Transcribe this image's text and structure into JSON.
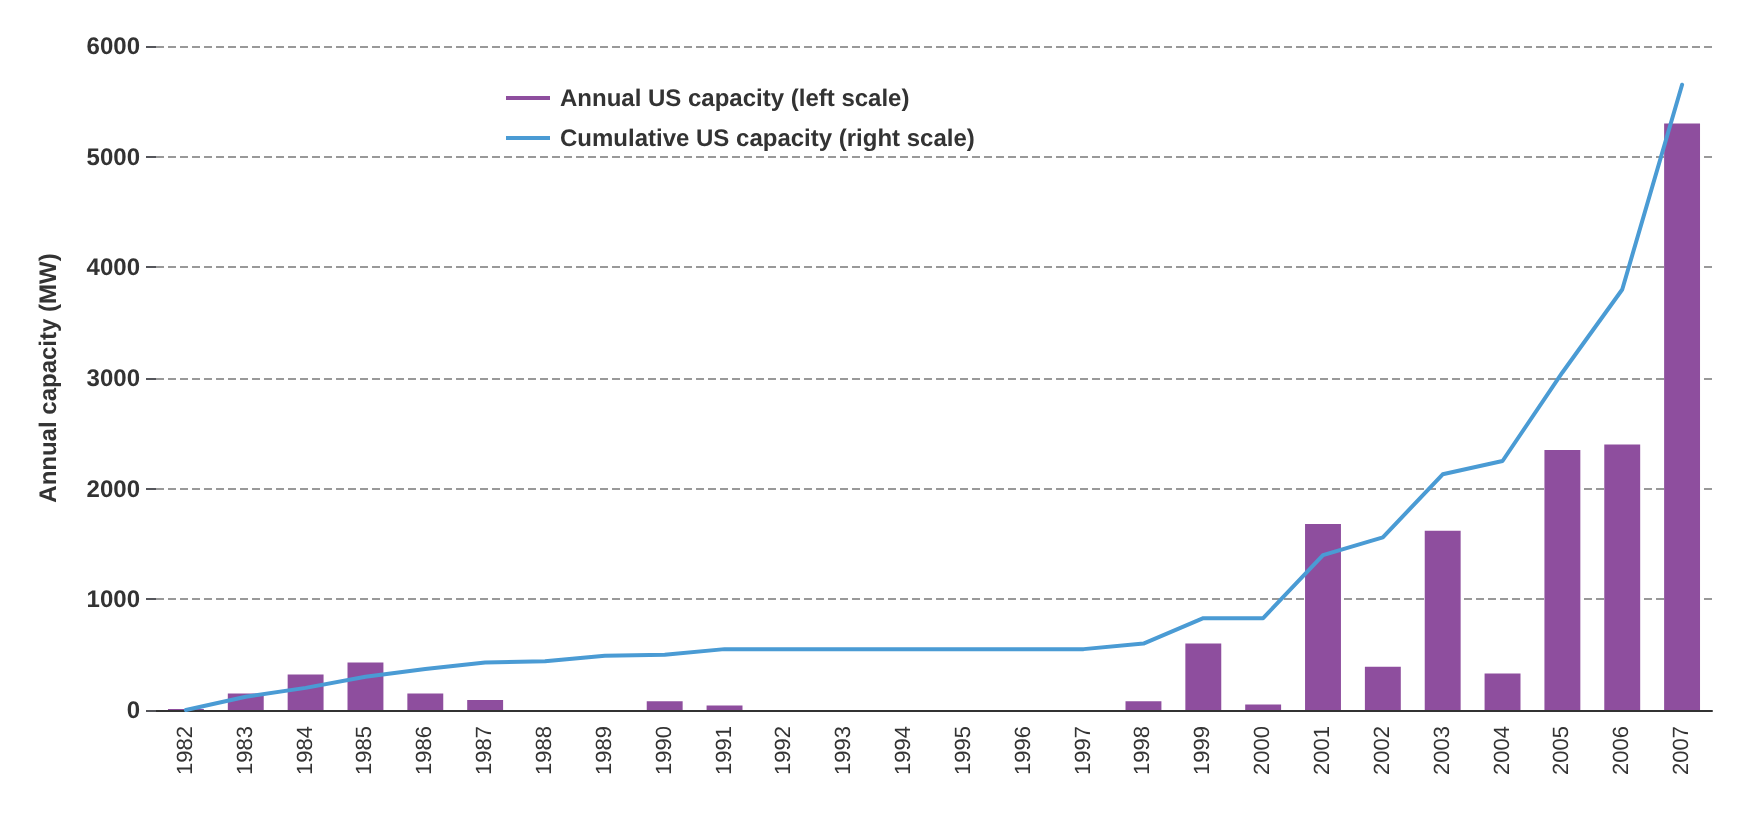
{
  "chart_data": {
    "type": "bar",
    "ylabel": "Annual capacity (MW)",
    "categories": [
      "1982",
      "1983",
      "1984",
      "1985",
      "1986",
      "1987",
      "1988",
      "1989",
      "1990",
      "1991",
      "1992",
      "1993",
      "1994",
      "1995",
      "1996",
      "1997",
      "1998",
      "1999",
      "2000",
      "2001",
      "2002",
      "2003",
      "2004",
      "2005",
      "2006",
      "2007"
    ],
    "series": [
      {
        "name": "Annual US capacity (left scale)",
        "color": "#8e4e9e",
        "values": [
          10,
          150,
          320,
          430,
          150,
          90,
          0,
          0,
          80,
          40,
          0,
          0,
          0,
          0,
          0,
          0,
          80,
          600,
          50,
          1680,
          390,
          1620,
          330,
          2350,
          2400,
          5300
        ]
      },
      {
        "name": "Cumulative US capacity (right scale)",
        "type": "line",
        "color": "#4a9bd4",
        "values": [
          0,
          120,
          200,
          300,
          370,
          430,
          440,
          490,
          500,
          550,
          550,
          550,
          550,
          550,
          550,
          550,
          600,
          830,
          830,
          1400,
          1560,
          2130,
          2250,
          3050,
          3800,
          5650
        ]
      }
    ],
    "ylim": [
      0,
      6000
    ],
    "yticks": [
      0,
      1000,
      2000,
      3000,
      4000,
      5000,
      6000
    ],
    "grid": "y",
    "legend": "top left",
    "marker": "none",
    "line_style": "solid"
  }
}
